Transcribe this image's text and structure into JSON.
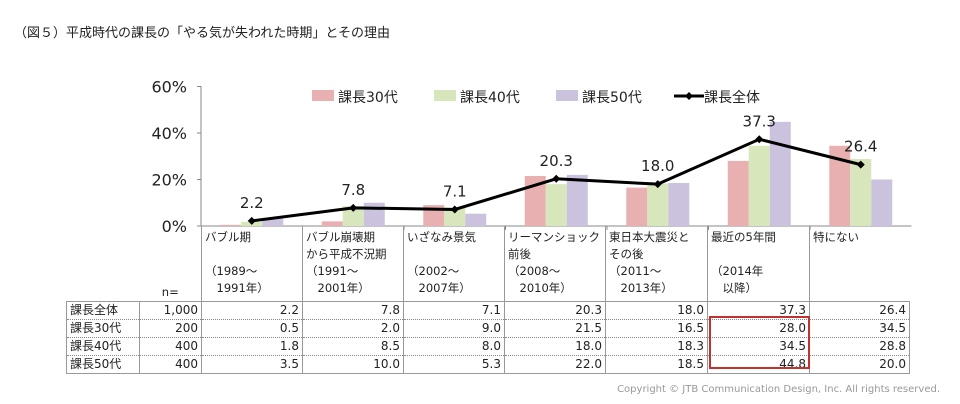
{
  "title": "（図５）平成時代の課長の「やる気が失われた時期」とその理由",
  "copyright": "Copyright © JTB Communication Design, Inc. All rights reserved.",
  "chart_data": {
    "type": "bar+line",
    "categories": [
      "バブル期\n\n（1989～\n　1991年）",
      "バブル崩壊期\nから平成不況期\n（1991～\n　2001年）",
      "いざなみ景気\n\n（2002～\n　2007年）",
      "リーマンショック\n前後\n（2008～\n　2010年）",
      "東日本大震災と\nその後\n（2011～\n　2013年）",
      "最近の5年間\n\n（2014年\n　以降）",
      "特にない"
    ],
    "yticks": [
      "0%",
      "20%",
      "40%",
      "60%"
    ],
    "ylim": [
      0,
      60
    ],
    "series": [
      {
        "name": "課長30代",
        "type": "bar",
        "color": "#e8b0b0",
        "n": "200",
        "values": [
          0.5,
          2.0,
          9.0,
          21.5,
          16.5,
          28.0,
          34.5
        ]
      },
      {
        "name": "課長40代",
        "type": "bar",
        "color": "#d7e6bb",
        "n": "400",
        "values": [
          1.8,
          8.5,
          8.0,
          18.0,
          18.3,
          34.5,
          28.8
        ]
      },
      {
        "name": "課長50代",
        "type": "bar",
        "color": "#cbc2de",
        "n": "400",
        "values": [
          3.5,
          10.0,
          5.3,
          22.0,
          18.5,
          44.8,
          20.0
        ]
      },
      {
        "name": "課長全体",
        "type": "line",
        "color": "#000000",
        "n": "1,000",
        "values": [
          2.2,
          7.8,
          7.1,
          20.3,
          18.0,
          37.3,
          26.4
        ],
        "labels": [
          "2.2",
          "7.8",
          "7.1",
          "20.3",
          "18.0",
          "37.3",
          "26.4"
        ]
      }
    ],
    "legend": "top",
    "n_label": "n=",
    "table_order": [
      3,
      0,
      1,
      2
    ],
    "table_values": [
      [
        "2.2",
        "7.8",
        "7.1",
        "20.3",
        "18.0",
        "37.3",
        "26.4"
      ],
      [
        "0.5",
        "2.0",
        "9.0",
        "21.5",
        "16.5",
        "28.0",
        "34.5"
      ],
      [
        "1.8",
        "8.5",
        "8.0",
        "18.0",
        "18.3",
        "34.5",
        "28.8"
      ],
      [
        "3.5",
        "10.0",
        "5.3",
        "22.0",
        "18.5",
        "44.8",
        "20.0"
      ]
    ],
    "highlight": "最近の5年間 課長30代〜50代"
  }
}
